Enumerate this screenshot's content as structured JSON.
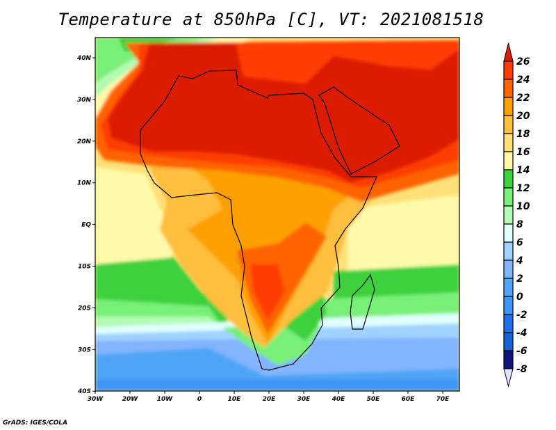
{
  "title": "Temperature at 850hPa [C], VT: 2021081518",
  "footer": "GrADS: IGES/COLA",
  "map": {
    "region": "Africa",
    "lon_labels": [
      "30W",
      "20W",
      "10W",
      "0",
      "10E",
      "20E",
      "30E",
      "40E",
      "50E",
      "60E",
      "70E"
    ],
    "lat_labels": [
      "40N",
      "30N",
      "20N",
      "10N",
      "EQ",
      "10S",
      "20S",
      "30S",
      "40S"
    ]
  },
  "colorbar": {
    "levels": [
      "26",
      "24",
      "22",
      "20",
      "18",
      "16",
      "14",
      "12",
      "10",
      "8",
      "6",
      "4",
      "2",
      "0",
      "-2",
      "-4",
      "-6",
      "-8"
    ],
    "above_color": "#dc1c00",
    "below_color": "#e1e1ff",
    "colors": [
      "#ff3c00",
      "#ff6400",
      "#ffa000",
      "#ffbe3c",
      "#ffe078",
      "#fffaaa",
      "#3cd23c",
      "#78f078",
      "#b4fab4",
      "#e1ffff",
      "#a0d2ff",
      "#82b4ff",
      "#50a5f5",
      "#3c96f5",
      "#1e6eeb",
      "#1464d2",
      "#0f1478"
    ]
  }
}
